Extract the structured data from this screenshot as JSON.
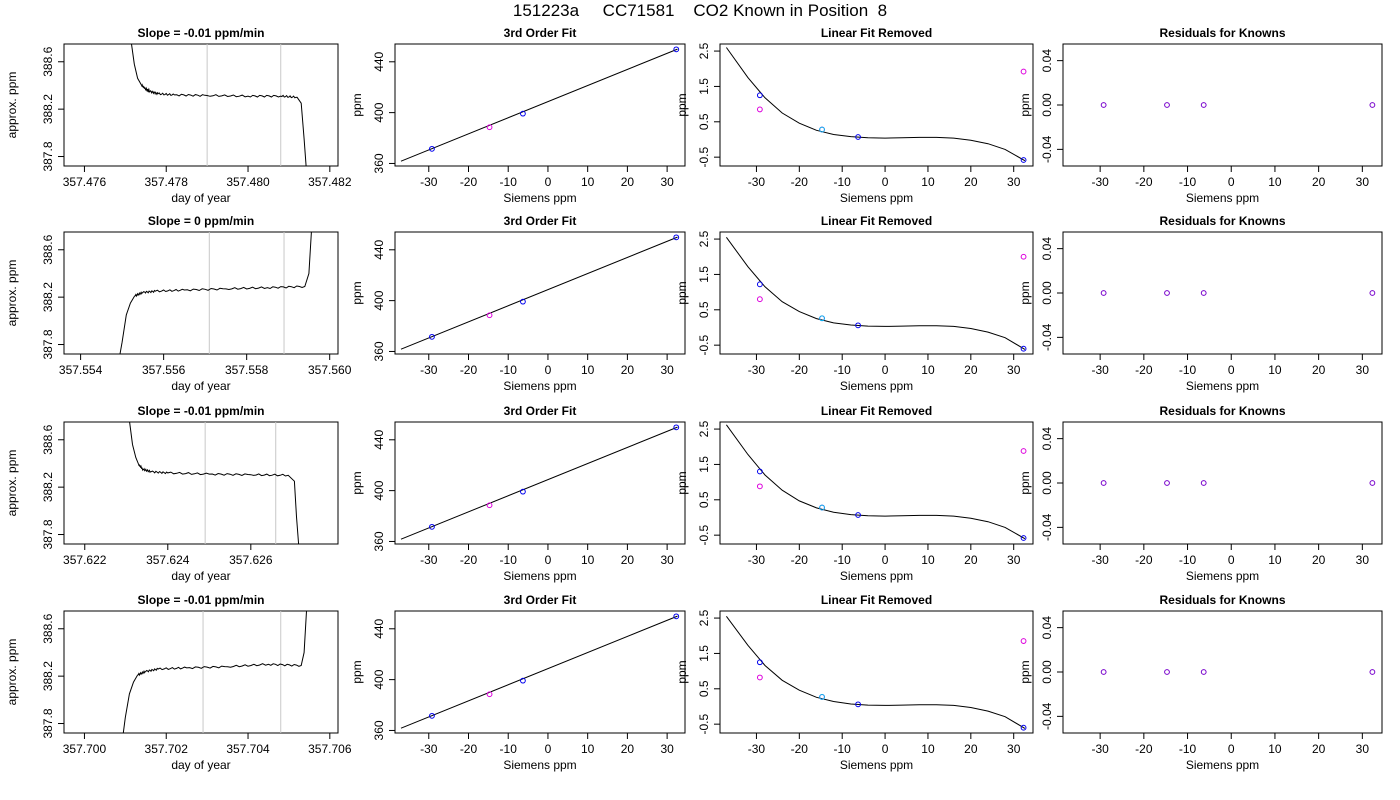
{
  "page": {
    "title": "151223a     CC71581    CO2 Known in Position  8"
  },
  "labels": {
    "ts_title_prefix": "Slope = ",
    "ts_title_suffix": "ppm/min",
    "ts_xlabel": "day of year",
    "ts_ylabel": "approx. ppm",
    "fit_title": "3rd Order Fit",
    "fit_ylabel": "ppm",
    "lin_title": "Linear Fit Removed",
    "lin_ylabel": "ppm",
    "res_title": "Residuals for Knowns",
    "res_ylabel": "ppm",
    "common_xlabel": "Siemens ppm"
  },
  "colors": {
    "line": "#000000",
    "vline": "#c8c8c8",
    "point_blue": "#0000ee",
    "point_magenta": "#dd00dd",
    "point_cyan": "#00bbee",
    "point_purple": "#7700cc"
  },
  "chart_data": [
    {
      "type": "line",
      "panel": "timeseries",
      "slope": "-0.01",
      "xlabel": "day of year",
      "ylabel": "approx. ppm",
      "xlim": [
        357.4755,
        357.4822
      ],
      "ylim": [
        387.72,
        388.75
      ],
      "xticks": [
        "357.476",
        "357.478",
        "357.480",
        "357.482"
      ],
      "yticks": [
        "387.8",
        "388.2",
        "388.6"
      ],
      "vlines": [
        357.479,
        357.4808
      ],
      "curve": [
        [
          357.47715,
          388.75
        ],
        [
          357.47722,
          388.58
        ],
        [
          357.4773,
          388.46
        ],
        [
          357.4774,
          388.4
        ],
        [
          357.4775,
          388.37
        ],
        [
          357.4776,
          388.35
        ],
        [
          357.4778,
          388.33
        ],
        [
          357.4782,
          388.32
        ],
        [
          357.479,
          388.315
        ],
        [
          357.48,
          388.31
        ],
        [
          357.4808,
          388.31
        ],
        [
          357.4812,
          388.3
        ],
        [
          357.4813,
          388.25
        ],
        [
          357.48137,
          387.95
        ],
        [
          357.48142,
          387.72
        ]
      ]
    },
    {
      "type": "line",
      "panel": "timeseries",
      "slope": "0",
      "xlabel": "day of year",
      "ylabel": "approx. ppm",
      "xlim": [
        357.5536,
        357.5602
      ],
      "ylim": [
        387.72,
        388.75
      ],
      "xticks": [
        "357.554",
        "357.556",
        "357.558",
        "357.560"
      ],
      "yticks": [
        "387.8",
        "388.2",
        "388.6"
      ],
      "vlines": [
        357.5571,
        357.5589
      ],
      "curve": [
        [
          357.55495,
          387.72
        ],
        [
          357.555,
          387.82
        ],
        [
          357.5551,
          388.05
        ],
        [
          357.5552,
          388.15
        ],
        [
          357.5553,
          388.21
        ],
        [
          357.5555,
          388.24
        ],
        [
          357.5558,
          388.25
        ],
        [
          357.5565,
          388.26
        ],
        [
          357.5575,
          388.27
        ],
        [
          357.5585,
          388.28
        ],
        [
          357.5594,
          388.29
        ],
        [
          357.5595,
          388.4
        ],
        [
          357.55956,
          388.75
        ]
      ]
    },
    {
      "type": "line",
      "panel": "timeseries",
      "slope": "-0.01",
      "xlabel": "day of year",
      "ylabel": "approx. ppm",
      "xlim": [
        357.6215,
        357.6281
      ],
      "ylim": [
        387.72,
        388.75
      ],
      "xticks": [
        "357.622",
        "357.624",
        "357.626"
      ],
      "yticks": [
        "387.8",
        "388.2",
        "388.6"
      ],
      "vlines": [
        357.6249,
        357.6266
      ],
      "curve": [
        [
          357.62308,
          388.75
        ],
        [
          357.62315,
          388.56
        ],
        [
          357.62323,
          388.45
        ],
        [
          357.6233,
          388.39
        ],
        [
          357.6234,
          388.35
        ],
        [
          357.6236,
          388.33
        ],
        [
          357.624,
          388.32
        ],
        [
          357.625,
          388.31
        ],
        [
          357.626,
          388.305
        ],
        [
          357.6269,
          388.3
        ],
        [
          357.62705,
          388.25
        ],
        [
          357.6271,
          387.95
        ],
        [
          357.62715,
          387.72
        ]
      ]
    },
    {
      "type": "line",
      "panel": "timeseries",
      "slope": "-0.01",
      "xlabel": "day of year",
      "ylabel": "approx. ppm",
      "xlim": [
        357.6995,
        357.7062
      ],
      "ylim": [
        387.72,
        388.75
      ],
      "xticks": [
        "357.700",
        "357.702",
        "357.704",
        "357.706"
      ],
      "yticks": [
        "387.8",
        "388.2",
        "388.6"
      ],
      "vlines": [
        357.7029,
        357.7048
      ],
      "curve": [
        [
          357.70095,
          387.72
        ],
        [
          357.701,
          387.85
        ],
        [
          357.7011,
          388.05
        ],
        [
          357.7012,
          388.15
        ],
        [
          357.7013,
          388.21
        ],
        [
          357.7015,
          388.24
        ],
        [
          357.7018,
          388.26
        ],
        [
          357.7025,
          388.27
        ],
        [
          357.7035,
          388.28
        ],
        [
          357.7045,
          388.3
        ],
        [
          357.7053,
          388.29
        ],
        [
          357.70537,
          388.4
        ],
        [
          357.70543,
          388.75
        ]
      ]
    },
    {
      "type": "scatter",
      "panel": "fit",
      "title": "3rd Order Fit",
      "xlabel": "Siemens ppm",
      "ylabel": "ppm",
      "xlim": [
        -38.5,
        34.5
      ],
      "ylim": [
        358,
        454
      ],
      "xticks": [
        "-30",
        "-20",
        "-10",
        "0",
        "10",
        "20",
        "30"
      ],
      "yticks": [
        "360",
        "400",
        "440"
      ],
      "points": [
        [
          -29.2,
          371.5
        ],
        [
          -14.7,
          388.5
        ],
        [
          -6.3,
          399.2
        ],
        [
          32.3,
          449.8
        ]
      ],
      "fit_line": [
        [
          -37.0,
          361.8
        ],
        [
          32.6,
          450.0
        ]
      ]
    },
    {
      "type": "scatter",
      "panel": "fit",
      "title": "3rd Order Fit",
      "xlabel": "Siemens ppm",
      "ylabel": "ppm",
      "xlim": [
        -38.5,
        34.5
      ],
      "ylim": [
        358,
        454
      ],
      "xticks": [
        "-30",
        "-20",
        "-10",
        "0",
        "10",
        "20",
        "30"
      ],
      "yticks": [
        "360",
        "400",
        "440"
      ],
      "points": [
        [
          -29.2,
          371.5
        ],
        [
          -14.7,
          388.5
        ],
        [
          -6.3,
          399.2
        ],
        [
          32.3,
          449.8
        ]
      ],
      "fit_line": [
        [
          -37.0,
          361.8
        ],
        [
          32.6,
          450.0
        ]
      ]
    },
    {
      "type": "scatter",
      "panel": "fit",
      "title": "3rd Order Fit",
      "xlabel": "Siemens ppm",
      "ylabel": "ppm",
      "xlim": [
        -38.5,
        34.5
      ],
      "ylim": [
        358,
        454
      ],
      "xticks": [
        "-30",
        "-20",
        "-10",
        "0",
        "10",
        "20",
        "30"
      ],
      "yticks": [
        "360",
        "400",
        "440"
      ],
      "points": [
        [
          -29.2,
          371.5
        ],
        [
          -14.7,
          388.5
        ],
        [
          -6.3,
          399.2
        ],
        [
          32.3,
          449.8
        ]
      ],
      "fit_line": [
        [
          -37.0,
          361.8
        ],
        [
          32.6,
          450.0
        ]
      ]
    },
    {
      "type": "scatter",
      "panel": "fit",
      "title": "3rd Order Fit",
      "xlabel": "Siemens ppm",
      "ylabel": "ppm",
      "xlim": [
        -38.5,
        34.5
      ],
      "ylim": [
        358,
        454
      ],
      "xticks": [
        "-30",
        "-20",
        "-10",
        "0",
        "10",
        "20",
        "30"
      ],
      "yticks": [
        "360",
        "400",
        "440"
      ],
      "points": [
        [
          -29.2,
          371.5
        ],
        [
          -14.7,
          388.5
        ],
        [
          -6.3,
          399.2
        ],
        [
          32.3,
          449.8
        ]
      ],
      "fit_line": [
        [
          -37.0,
          361.8
        ],
        [
          32.6,
          450.0
        ]
      ]
    },
    {
      "type": "scatter",
      "panel": "linear_removed",
      "title": "Linear Fit Removed",
      "xlabel": "Siemens ppm",
      "ylabel": "ppm",
      "xlim": [
        -38.5,
        34.5
      ],
      "ylim": [
        -0.75,
        2.7
      ],
      "xticks": [
        "-30",
        "-20",
        "-10",
        "0",
        "10",
        "20",
        "30"
      ],
      "yticks": [
        "-0.5",
        "0.5",
        "1.5",
        "2.5"
      ],
      "fit_points": [
        [
          -29.2,
          1.25
        ],
        [
          -14.7,
          0.28
        ],
        [
          -6.3,
          0.07
        ],
        [
          32.3,
          -0.58
        ]
      ],
      "fit_colors": [
        "blue",
        "cyan",
        "blue",
        "blue"
      ],
      "raw_points": [
        [
          -29.2,
          0.85
        ],
        [
          -14.7,
          0.28
        ],
        [
          32.3,
          1.92
        ]
      ],
      "curve": [
        [
          -37.0,
          2.6
        ],
        [
          -32.0,
          1.75
        ],
        [
          -28.0,
          1.18
        ],
        [
          -24.0,
          0.75
        ],
        [
          -20.0,
          0.46
        ],
        [
          -16.0,
          0.26
        ],
        [
          -12.0,
          0.14
        ],
        [
          -8.0,
          0.08
        ],
        [
          -4.0,
          0.05
        ],
        [
          0.0,
          0.04
        ],
        [
          4.0,
          0.05
        ],
        [
          8.0,
          0.06
        ],
        [
          12.0,
          0.06
        ],
        [
          16.0,
          0.04
        ],
        [
          20.0,
          -0.02
        ],
        [
          24.0,
          -0.12
        ],
        [
          28.0,
          -0.28
        ],
        [
          32.6,
          -0.6
        ]
      ]
    },
    {
      "type": "scatter",
      "panel": "linear_removed",
      "title": "Linear Fit Removed",
      "xlabel": "Siemens ppm",
      "ylabel": "ppm",
      "xlim": [
        -38.5,
        34.5
      ],
      "ylim": [
        -0.75,
        2.7
      ],
      "xticks": [
        "-30",
        "-20",
        "-10",
        "0",
        "10",
        "20",
        "30"
      ],
      "yticks": [
        "-0.5",
        "0.5",
        "1.5",
        "2.5"
      ],
      "fit_points": [
        [
          -29.2,
          1.22
        ],
        [
          -14.7,
          0.26
        ],
        [
          -6.3,
          0.06
        ],
        [
          32.3,
          -0.6
        ]
      ],
      "fit_colors": [
        "blue",
        "cyan",
        "blue",
        "blue"
      ],
      "raw_points": [
        [
          -29.2,
          0.8
        ],
        [
          -14.7,
          0.26
        ],
        [
          32.3,
          2.0
        ]
      ],
      "curve": [
        [
          -37.0,
          2.55
        ],
        [
          -32.0,
          1.72
        ],
        [
          -28.0,
          1.15
        ],
        [
          -24.0,
          0.73
        ],
        [
          -20.0,
          0.45
        ],
        [
          -16.0,
          0.25
        ],
        [
          -12.0,
          0.13
        ],
        [
          -8.0,
          0.07
        ],
        [
          -4.0,
          0.04
        ],
        [
          0.0,
          0.03
        ],
        [
          4.0,
          0.04
        ],
        [
          8.0,
          0.05
        ],
        [
          12.0,
          0.05
        ],
        [
          16.0,
          0.03
        ],
        [
          20.0,
          -0.03
        ],
        [
          24.0,
          -0.13
        ],
        [
          28.0,
          -0.29
        ],
        [
          32.6,
          -0.62
        ]
      ]
    },
    {
      "type": "scatter",
      "panel": "linear_removed",
      "title": "Linear Fit Removed",
      "xlabel": "Siemens ppm",
      "ylabel": "ppm",
      "xlim": [
        -38.5,
        34.5
      ],
      "ylim": [
        -0.75,
        2.7
      ],
      "xticks": [
        "-30",
        "-20",
        "-10",
        "0",
        "10",
        "20",
        "30"
      ],
      "yticks": [
        "-0.5",
        "0.5",
        "1.5",
        "2.5"
      ],
      "fit_points": [
        [
          -29.2,
          1.3
        ],
        [
          -14.7,
          0.28
        ],
        [
          -6.3,
          0.07
        ],
        [
          32.3,
          -0.58
        ]
      ],
      "fit_colors": [
        "blue",
        "cyan",
        "blue",
        "blue"
      ],
      "raw_points": [
        [
          -29.2,
          0.88
        ],
        [
          -14.7,
          0.28
        ],
        [
          32.3,
          1.88
        ]
      ],
      "curve": [
        [
          -37.0,
          2.62
        ],
        [
          -32.0,
          1.78
        ],
        [
          -28.0,
          1.2
        ],
        [
          -24.0,
          0.77
        ],
        [
          -20.0,
          0.47
        ],
        [
          -16.0,
          0.27
        ],
        [
          -12.0,
          0.15
        ],
        [
          -8.0,
          0.08
        ],
        [
          -4.0,
          0.05
        ],
        [
          0.0,
          0.04
        ],
        [
          4.0,
          0.05
        ],
        [
          8.0,
          0.06
        ],
        [
          12.0,
          0.06
        ],
        [
          16.0,
          0.04
        ],
        [
          20.0,
          -0.02
        ],
        [
          24.0,
          -0.12
        ],
        [
          28.0,
          -0.28
        ],
        [
          32.6,
          -0.6
        ]
      ]
    },
    {
      "type": "scatter",
      "panel": "linear_removed",
      "title": "Linear Fit Removed",
      "xlabel": "Siemens ppm",
      "ylabel": "ppm",
      "xlim": [
        -38.5,
        34.5
      ],
      "ylim": [
        -0.75,
        2.7
      ],
      "xticks": [
        "-30",
        "-20",
        "-10",
        "0",
        "10",
        "20",
        "30"
      ],
      "yticks": [
        "-0.5",
        "0.5",
        "1.5",
        "2.5"
      ],
      "fit_points": [
        [
          -29.2,
          1.25
        ],
        [
          -14.7,
          0.27
        ],
        [
          -6.3,
          0.06
        ],
        [
          32.3,
          -0.6
        ]
      ],
      "fit_colors": [
        "blue",
        "cyan",
        "blue",
        "blue"
      ],
      "raw_points": [
        [
          -29.2,
          0.82
        ],
        [
          -14.7,
          0.27
        ],
        [
          32.3,
          1.85
        ]
      ],
      "curve": [
        [
          -37.0,
          2.55
        ],
        [
          -32.0,
          1.73
        ],
        [
          -28.0,
          1.16
        ],
        [
          -24.0,
          0.74
        ],
        [
          -20.0,
          0.46
        ],
        [
          -16.0,
          0.26
        ],
        [
          -12.0,
          0.14
        ],
        [
          -8.0,
          0.07
        ],
        [
          -4.0,
          0.04
        ],
        [
          0.0,
          0.03
        ],
        [
          4.0,
          0.04
        ],
        [
          8.0,
          0.05
        ],
        [
          12.0,
          0.05
        ],
        [
          16.0,
          0.03
        ],
        [
          20.0,
          -0.03
        ],
        [
          24.0,
          -0.13
        ],
        [
          28.0,
          -0.29
        ],
        [
          32.6,
          -0.62
        ]
      ]
    },
    {
      "type": "scatter",
      "panel": "residuals",
      "title": "Residuals for Knowns",
      "xlabel": "Siemens ppm",
      "ylabel": "ppm",
      "xlim": [
        -38.5,
        34.5
      ],
      "ylim": [
        -0.055,
        0.055
      ],
      "xticks": [
        "-30",
        "-20",
        "-10",
        "0",
        "10",
        "20",
        "30"
      ],
      "yticks": [
        "-0.04",
        "0.00",
        "0.04"
      ],
      "points": [
        [
          -29.2,
          0.0
        ],
        [
          -14.7,
          0.0
        ],
        [
          -6.3,
          0.0
        ],
        [
          32.3,
          0.0
        ]
      ]
    },
    {
      "type": "scatter",
      "panel": "residuals",
      "title": "Residuals for Knowns",
      "xlabel": "Siemens ppm",
      "ylabel": "ppm",
      "xlim": [
        -38.5,
        34.5
      ],
      "ylim": [
        -0.055,
        0.055
      ],
      "xticks": [
        "-30",
        "-20",
        "-10",
        "0",
        "10",
        "20",
        "30"
      ],
      "yticks": [
        "-0.04",
        "0.00",
        "0.04"
      ],
      "points": [
        [
          -29.2,
          0.0
        ],
        [
          -14.7,
          0.0
        ],
        [
          -6.3,
          0.0
        ],
        [
          32.3,
          0.0
        ]
      ]
    },
    {
      "type": "scatter",
      "panel": "residuals",
      "title": "Residuals for Knowns",
      "xlabel": "Siemens ppm",
      "ylabel": "ppm",
      "xlim": [
        -38.5,
        34.5
      ],
      "ylim": [
        -0.055,
        0.055
      ],
      "xticks": [
        "-30",
        "-20",
        "-10",
        "0",
        "10",
        "20",
        "30"
      ],
      "yticks": [
        "-0.04",
        "0.00",
        "0.04"
      ],
      "points": [
        [
          -29.2,
          0.0
        ],
        [
          -14.7,
          0.0
        ],
        [
          -6.3,
          0.0
        ],
        [
          32.3,
          0.0
        ]
      ]
    },
    {
      "type": "scatter",
      "panel": "residuals",
      "title": "Residuals for Knowns",
      "xlabel": "Siemens ppm",
      "ylabel": "ppm",
      "xlim": [
        -38.5,
        34.5
      ],
      "ylim": [
        -0.055,
        0.055
      ],
      "xticks": [
        "-30",
        "-20",
        "-10",
        "0",
        "10",
        "20",
        "30"
      ],
      "yticks": [
        "-0.04",
        "0.00",
        "0.04"
      ],
      "points": [
        [
          -29.2,
          0.0
        ],
        [
          -14.7,
          0.0
        ],
        [
          -6.3,
          0.0
        ],
        [
          32.3,
          0.0
        ]
      ]
    }
  ]
}
